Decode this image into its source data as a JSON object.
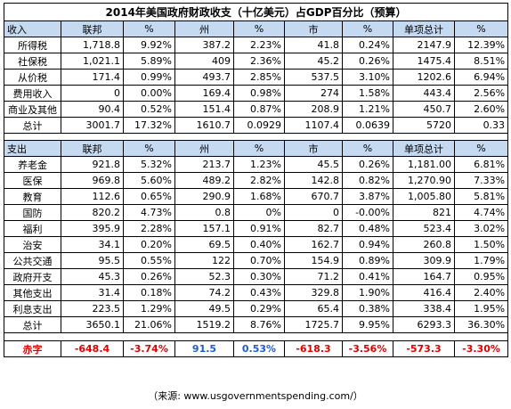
{
  "title": "2014年美国政府财政收支（十亿美元）占GDP百分比（预算）",
  "income_header": [
    "收入",
    "联邦",
    "%",
    "州",
    "%",
    "市",
    "%",
    "单项总计",
    "%"
  ],
  "income_rows": [
    [
      "所得税",
      "1,718.8",
      "9.92%",
      "387.2",
      "2.23%",
      "41.8",
      "0.24%",
      "2147.9",
      "12.39%"
    ],
    [
      "社保税",
      "1,021.1",
      "5.89%",
      "409",
      "2.36%",
      "45.2",
      "0.26%",
      "1475.4",
      "8.51%"
    ],
    [
      "从价税",
      "171.4",
      "0.99%",
      "493.7",
      "2.85%",
      "537.5",
      "3.10%",
      "1202.6",
      "6.94%"
    ],
    [
      "费用收入",
      "0",
      "0.00%",
      "169.4",
      "0.98%",
      "274",
      "1.58%",
      "443.4",
      "2.56%"
    ],
    [
      "商业及其他",
      "90.4",
      "0.52%",
      "151.4",
      "0.87%",
      "208.9",
      "1.21%",
      "450.7",
      "2.60%"
    ],
    [
      "总计",
      "3001.7",
      "17.32%",
      "1610.7",
      "0.0929",
      "1107.4",
      "0.0639",
      "5720",
      "0.33"
    ]
  ],
  "expense_header": [
    "支出",
    "联邦",
    "%",
    "州",
    "%",
    "市",
    "%",
    "单项总计",
    "%"
  ],
  "expense_rows": [
    [
      "养老金",
      "921.8",
      "5.32%",
      "213.7",
      "1.23%",
      "45.5",
      "0.26%",
      "1,181.00",
      "6.81%"
    ],
    [
      "医保",
      "969.8",
      "5.60%",
      "489.2",
      "2.82%",
      "142.8",
      "0.82%",
      "1,270.90",
      "7.33%"
    ],
    [
      "教育",
      "112.6",
      "0.65%",
      "290.9",
      "1.68%",
      "670.7",
      "3.87%",
      "1,005.80",
      "5.81%"
    ],
    [
      "国防",
      "820.2",
      "4.73%",
      "0.8",
      "0%",
      "0",
      "-0.00%",
      "821",
      "4.74%"
    ],
    [
      "福利",
      "395.9",
      "2.28%",
      "157.1",
      "0.91%",
      "82.7",
      "0.48%",
      "523.4",
      "3.02%"
    ],
    [
      "治安",
      "34.1",
      "0.20%",
      "69.5",
      "0.40%",
      "162.7",
      "0.94%",
      "260.8",
      "1.50%"
    ],
    [
      "公共交通",
      "95.5",
      "0.55%",
      "122",
      "0.70%",
      "154.9",
      "0.89%",
      "309.9",
      "1.79%"
    ],
    [
      "政府开支",
      "45.3",
      "0.26%",
      "52.3",
      "0.30%",
      "71.2",
      "0.41%",
      "164.7",
      "0.95%"
    ],
    [
      "其他支出",
      "31.4",
      "0.18%",
      "74.2",
      "0.43%",
      "329.8",
      "1.90%",
      "416.4",
      "2.40%"
    ],
    [
      "利息支出",
      "223.5",
      "1.29%",
      "49.5",
      "0.29%",
      "65.4",
      "0.38%",
      "338.4",
      "1.95%"
    ],
    [
      "总计",
      "3650.1",
      "21.06%",
      "1519.2",
      "8.76%",
      "1725.7",
      "9.95%",
      "6293.3",
      "36.30%"
    ]
  ],
  "deficit_row": [
    "赤字",
    "-648.4",
    "-3.74%",
    "91.5",
    "0.53%",
    "-618.3",
    "-3.56%",
    "-573.3",
    "-3.30%"
  ],
  "source_text": "（来源: www.usgovernmentspending.com/）",
  "colors": {
    "header_bg": "#c5d9f1",
    "negative": "#e00000",
    "positive": "#1f5bd8"
  }
}
